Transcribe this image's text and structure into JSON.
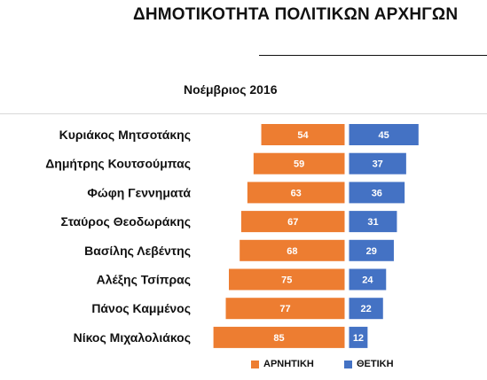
{
  "chart_data": {
    "type": "bar",
    "title": "ΔΗΜΟΤΙΚΟΤΗΤΑ ΠΟΛΙΤΙΚΩΝ ΑΡΧΗΓΩΝ",
    "subtitle": "Νοέμβριος 2016",
    "orientation": "horizontal-diverging",
    "categories": [
      "Κυριάκος Μητσοτάκης",
      "Δημήτρης Κουτσούμπας",
      "Φώφη Γεννηματά",
      "Σταύρος Θεοδωράκης",
      "Βασίλης Λεβέντης",
      "Αλέξης Τσίπρας",
      "Πάνος Καμμένος",
      "Νίκος Μιχαλολιάκος"
    ],
    "series": [
      {
        "name": "ΑΡΝΗΤΙΚΗ",
        "color": "#ED7D31",
        "direction": "left",
        "values": [
          54,
          59,
          63,
          67,
          68,
          75,
          77,
          85
        ]
      },
      {
        "name": "ΘΕΤΙΚΗ",
        "color": "#4472C4",
        "direction": "right",
        "values": [
          45,
          37,
          36,
          31,
          29,
          24,
          22,
          12
        ]
      }
    ],
    "legend_position": "bottom-right",
    "grid": false
  }
}
